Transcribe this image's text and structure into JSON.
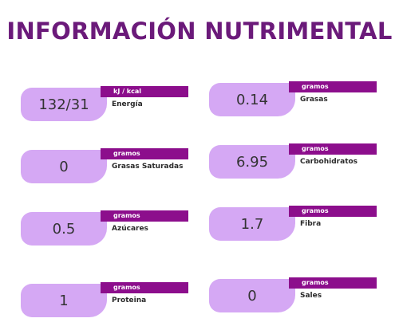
{
  "title": "INFORMACIÓN NUTRIMENTAL",
  "items": [
    {
      "value": "132/31",
      "unit": "kJ / kcal",
      "label": "Energía"
    },
    {
      "value": "0.14",
      "unit": "gramos",
      "label": "Grasas"
    },
    {
      "value": "0",
      "unit": "gramos",
      "label": "Grasas Saturadas"
    },
    {
      "value": "6.95",
      "unit": "gramos",
      "label": "Carbohidratos"
    },
    {
      "value": "0.5",
      "unit": "gramos",
      "label": "Azúcares"
    },
    {
      "value": "1.7",
      "unit": "gramos",
      "label": "Fibra"
    },
    {
      "value": "1",
      "unit": "gramos",
      "label": "Proteina"
    },
    {
      "value": "0",
      "unit": "gramos",
      "label": "Sales"
    }
  ],
  "colors": {
    "title": "#6b1a7a",
    "unit_bar": "#8c0e8c",
    "value_pill": "#d5a8f4"
  }
}
